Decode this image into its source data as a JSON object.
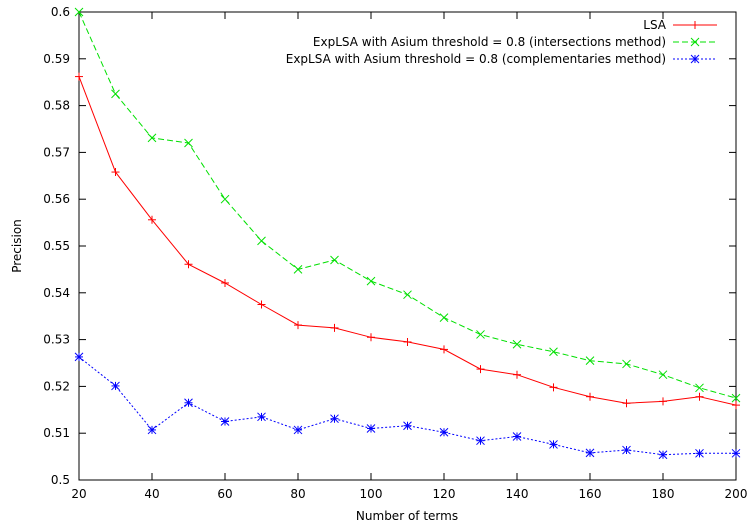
{
  "chart_data": {
    "type": "line",
    "xlabel": "Number of terms",
    "ylabel": "Precision",
    "xlim": [
      20,
      200
    ],
    "ylim": [
      0.5,
      0.6
    ],
    "xticks": [
      "20",
      "40",
      "60",
      "80",
      "100",
      "120",
      "140",
      "160",
      "180",
      "200"
    ],
    "yticks": [
      "0.5",
      "0.51",
      "0.52",
      "0.53",
      "0.54",
      "0.55",
      "0.56",
      "0.57",
      "0.58",
      "0.59",
      "0.6"
    ],
    "legend_position": "top-right",
    "grid": false,
    "x": [
      20,
      30,
      40,
      50,
      60,
      70,
      80,
      90,
      100,
      110,
      120,
      130,
      140,
      150,
      160,
      170,
      180,
      190,
      200
    ],
    "series": [
      {
        "name": "LSA",
        "color": "#ff0000",
        "line_style": "solid",
        "marker": "plus",
        "values": [
          0.5862,
          0.5658,
          0.5556,
          0.5461,
          0.5421,
          0.5375,
          0.5331,
          0.5325,
          0.5305,
          0.5295,
          0.5279,
          0.5237,
          0.5225,
          0.5198,
          0.5178,
          0.5164,
          0.5168,
          0.5178,
          0.516
        ]
      },
      {
        "name": "ExpLSA with Asium threshold = 0.8 (intersections method)",
        "color": "#00e000",
        "line_style": "dashed",
        "marker": "cross",
        "values": [
          0.6,
          0.5825,
          0.5731,
          0.572,
          0.56,
          0.5511,
          0.545,
          0.547,
          0.5425,
          0.5396,
          0.5347,
          0.5311,
          0.529,
          0.5274,
          0.5255,
          0.5248,
          0.5225,
          0.5197,
          0.5175
        ]
      },
      {
        "name": "ExpLSA with Asium threshold = 0.8 (complementaries method)",
        "color": "#0000ff",
        "line_style": "dotted",
        "marker": "star",
        "values": [
          0.5263,
          0.5201,
          0.5107,
          0.5165,
          0.5125,
          0.5135,
          0.5107,
          0.5131,
          0.511,
          0.5116,
          0.5102,
          0.5084,
          0.5093,
          0.5076,
          0.5058,
          0.5064,
          0.5054,
          0.5057,
          0.5057
        ]
      }
    ]
  }
}
